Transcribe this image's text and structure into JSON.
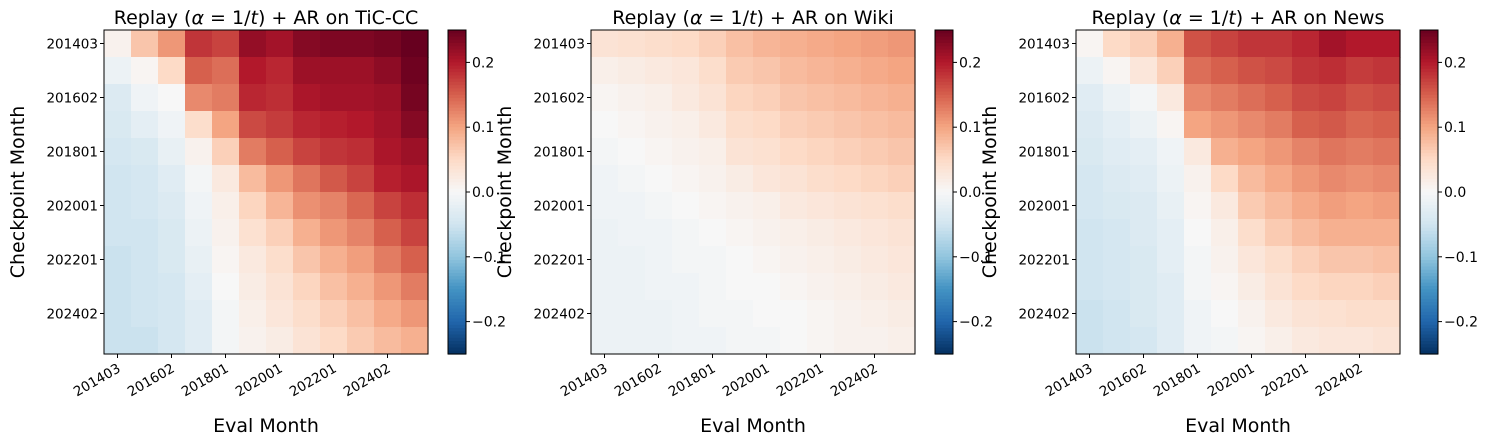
{
  "chart_data": [
    {
      "type": "heatmap",
      "title": "Replay (α = 1/t) + AR on TiC-CC",
      "title_parts": {
        "prefix": "Replay (",
        "alpha": "α",
        "eq": " = 1/",
        "t": "t",
        "suffix": ") + AR on TiC-CC"
      },
      "xlabel": "Eval Month",
      "ylabel": "Checkpoint Month",
      "xtick_labels": [
        "201403",
        "201602",
        "201801",
        "202001",
        "202201",
        "202402"
      ],
      "ytick_labels": [
        "201403",
        "201602",
        "201801",
        "202001",
        "202201",
        "202402"
      ],
      "colorbar_ticks": [
        "0.2",
        "0.1",
        "0.0",
        "−0.1",
        "−0.2"
      ],
      "colorbar_range": [
        -0.25,
        0.25
      ],
      "colormap": "RdBu_r",
      "matrix": [
        [
          0.01,
          0.07,
          0.11,
          0.18,
          0.17,
          0.22,
          0.21,
          0.23,
          0.235,
          0.235,
          0.24,
          0.25
        ],
        [
          -0.015,
          0.005,
          0.05,
          0.15,
          0.14,
          0.2,
          0.19,
          0.215,
          0.215,
          0.215,
          0.225,
          0.245
        ],
        [
          -0.035,
          -0.01,
          0.0,
          0.12,
          0.13,
          0.19,
          0.185,
          0.205,
          0.21,
          0.21,
          0.215,
          0.24
        ],
        [
          -0.04,
          -0.025,
          -0.01,
          0.045,
          0.1,
          0.165,
          0.175,
          0.19,
          0.195,
          0.2,
          0.21,
          0.23
        ],
        [
          -0.045,
          -0.04,
          -0.02,
          0.01,
          0.06,
          0.13,
          0.15,
          0.17,
          0.18,
          0.185,
          0.205,
          0.215
        ],
        [
          -0.05,
          -0.045,
          -0.03,
          -0.005,
          0.025,
          0.08,
          0.11,
          0.135,
          0.155,
          0.17,
          0.195,
          0.205
        ],
        [
          -0.05,
          -0.045,
          -0.035,
          -0.01,
          0.015,
          0.055,
          0.085,
          0.115,
          0.125,
          0.145,
          0.17,
          0.185
        ],
        [
          -0.05,
          -0.05,
          -0.04,
          -0.015,
          0.01,
          0.04,
          0.06,
          0.09,
          0.11,
          0.125,
          0.15,
          0.17
        ],
        [
          -0.055,
          -0.05,
          -0.04,
          -0.02,
          0.005,
          0.025,
          0.045,
          0.07,
          0.09,
          0.105,
          0.13,
          0.15
        ],
        [
          -0.055,
          -0.05,
          -0.045,
          -0.025,
          0.0,
          0.02,
          0.035,
          0.055,
          0.075,
          0.09,
          0.11,
          0.13
        ],
        [
          -0.055,
          -0.05,
          -0.045,
          -0.03,
          -0.005,
          0.015,
          0.03,
          0.045,
          0.06,
          0.075,
          0.095,
          0.11
        ],
        [
          -0.055,
          -0.055,
          -0.045,
          -0.03,
          -0.005,
          0.01,
          0.02,
          0.035,
          0.05,
          0.065,
          0.08,
          0.09
        ]
      ]
    },
    {
      "type": "heatmap",
      "title": "Replay (α = 1/t) + AR on Wiki",
      "title_parts": {
        "prefix": "Replay (",
        "alpha": "α",
        "eq": " = 1/",
        "t": "t",
        "suffix": ") + AR on Wiki"
      },
      "xlabel": "Eval Month",
      "ylabel": "Checkpoint Month",
      "xtick_labels": [
        "201403",
        "201602",
        "201801",
        "202001",
        "202201",
        "202402"
      ],
      "ytick_labels": [
        "201403",
        "201602",
        "201801",
        "202001",
        "202201",
        "202402"
      ],
      "colorbar_ticks": [
        "0.2",
        "0.1",
        "0.0",
        "−0.1",
        "−0.2"
      ],
      "colorbar_range": [
        -0.25,
        0.25
      ],
      "colormap": "RdBu_r",
      "matrix": [
        [
          0.035,
          0.04,
          0.045,
          0.05,
          0.06,
          0.075,
          0.085,
          0.09,
          0.095,
          0.1,
          0.105,
          0.11
        ],
        [
          0.015,
          0.02,
          0.025,
          0.03,
          0.045,
          0.065,
          0.07,
          0.08,
          0.085,
          0.09,
          0.095,
          0.1
        ],
        [
          0.005,
          0.01,
          0.015,
          0.025,
          0.035,
          0.055,
          0.06,
          0.07,
          0.075,
          0.08,
          0.085,
          0.09
        ],
        [
          0.0,
          0.005,
          0.01,
          0.015,
          0.025,
          0.045,
          0.05,
          0.06,
          0.065,
          0.07,
          0.075,
          0.08
        ],
        [
          -0.005,
          0.0,
          0.005,
          0.01,
          0.015,
          0.035,
          0.04,
          0.05,
          0.055,
          0.06,
          0.065,
          0.07
        ],
        [
          -0.01,
          -0.005,
          0.0,
          0.005,
          0.01,
          0.02,
          0.03,
          0.035,
          0.045,
          0.05,
          0.055,
          0.06
        ],
        [
          -0.01,
          -0.01,
          -0.005,
          0.0,
          0.005,
          0.01,
          0.015,
          0.025,
          0.03,
          0.035,
          0.04,
          0.045
        ],
        [
          -0.015,
          -0.01,
          -0.01,
          -0.005,
          0.0,
          0.005,
          0.01,
          0.015,
          0.02,
          0.025,
          0.03,
          0.035
        ],
        [
          -0.015,
          -0.015,
          -0.01,
          -0.005,
          -0.005,
          0.0,
          0.005,
          0.01,
          0.015,
          0.02,
          0.025,
          0.03
        ],
        [
          -0.015,
          -0.015,
          -0.01,
          -0.01,
          -0.005,
          0.0,
          0.0,
          0.005,
          0.01,
          0.015,
          0.02,
          0.025
        ],
        [
          -0.015,
          -0.015,
          -0.015,
          -0.01,
          -0.005,
          -0.005,
          0.0,
          0.0,
          0.005,
          0.01,
          0.015,
          0.02
        ],
        [
          -0.015,
          -0.015,
          -0.015,
          -0.01,
          -0.01,
          -0.005,
          -0.005,
          0.0,
          0.005,
          0.01,
          0.01,
          0.015
        ]
      ]
    },
    {
      "type": "heatmap",
      "title": "Replay (α = 1/t) + AR on News",
      "title_parts": {
        "prefix": "Replay (",
        "alpha": "α",
        "eq": " = 1/",
        "t": "t",
        "suffix": ") + AR on News"
      },
      "xlabel": "Eval Month",
      "ylabel": "Checkpoint Month",
      "xtick_labels": [
        "201403",
        "201602",
        "201801",
        "202001",
        "202201",
        "202402"
      ],
      "ytick_labels": [
        "201403",
        "201602",
        "201801",
        "202001",
        "202201",
        "202402"
      ],
      "colorbar_ticks": [
        "0.2",
        "0.1",
        "0.0",
        "−0.1",
        "−0.2"
      ],
      "colorbar_range": [
        -0.25,
        0.25
      ],
      "colormap": "RdBu_r",
      "matrix": [
        [
          0.005,
          0.05,
          0.06,
          0.09,
          0.16,
          0.17,
          0.18,
          0.18,
          0.19,
          0.21,
          0.2,
          0.2
        ],
        [
          -0.015,
          0.005,
          0.03,
          0.06,
          0.14,
          0.15,
          0.16,
          0.165,
          0.18,
          0.185,
          0.175,
          0.18
        ],
        [
          -0.03,
          -0.015,
          -0.005,
          0.025,
          0.12,
          0.13,
          0.14,
          0.15,
          0.165,
          0.17,
          0.16,
          0.165
        ],
        [
          -0.035,
          -0.025,
          -0.015,
          0.005,
          0.1,
          0.11,
          0.12,
          0.13,
          0.15,
          0.155,
          0.145,
          0.15
        ],
        [
          -0.04,
          -0.03,
          -0.025,
          -0.01,
          0.025,
          0.09,
          0.1,
          0.11,
          0.125,
          0.135,
          0.13,
          0.135
        ],
        [
          -0.045,
          -0.035,
          -0.03,
          -0.015,
          0.01,
          0.05,
          0.08,
          0.095,
          0.11,
          0.12,
          0.115,
          0.12
        ],
        [
          -0.045,
          -0.04,
          -0.035,
          -0.02,
          0.005,
          0.025,
          0.065,
          0.08,
          0.095,
          0.105,
          0.1,
          0.105
        ],
        [
          -0.05,
          -0.045,
          -0.035,
          -0.025,
          0.0,
          0.015,
          0.045,
          0.065,
          0.08,
          0.09,
          0.09,
          0.09
        ],
        [
          -0.05,
          -0.045,
          -0.04,
          -0.025,
          -0.005,
          0.01,
          0.03,
          0.045,
          0.06,
          0.07,
          0.07,
          0.075
        ],
        [
          -0.05,
          -0.045,
          -0.04,
          -0.03,
          -0.005,
          0.005,
          0.02,
          0.035,
          0.05,
          0.055,
          0.055,
          0.06
        ],
        [
          -0.055,
          -0.05,
          -0.04,
          -0.03,
          -0.01,
          0.0,
          0.01,
          0.025,
          0.035,
          0.04,
          0.045,
          0.045
        ],
        [
          -0.055,
          -0.05,
          -0.045,
          -0.03,
          -0.01,
          -0.005,
          0.005,
          0.015,
          0.025,
          0.03,
          0.03,
          0.035
        ]
      ]
    }
  ]
}
